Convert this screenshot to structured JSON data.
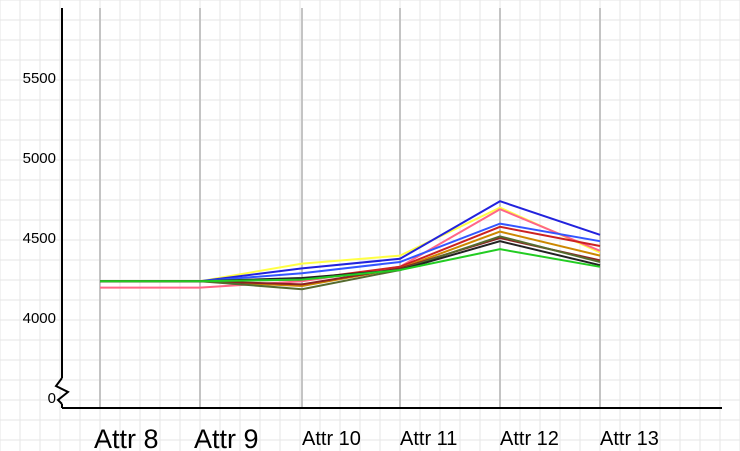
{
  "chart_data": {
    "type": "line",
    "title": "",
    "xlabel": "",
    "ylabel": "",
    "x_categories": [
      "Attr 8",
      "Attr 9",
      "Attr 10",
      "Attr 11",
      "Attr 12",
      "Attr 13"
    ],
    "y_tick_labels": [
      "0",
      "4000",
      "4500",
      "5000",
      "5500"
    ],
    "y_axis_break": true,
    "ylim": [
      3800,
      6000
    ],
    "grid": true,
    "legend": "none",
    "series": [
      {
        "color": "#ffff44",
        "values": [
          4230,
          4230,
          4340,
          4390,
          4690,
          4410
        ]
      },
      {
        "color": "#2222dd",
        "values": [
          4230,
          4230,
          4310,
          4370,
          4730,
          4520
        ]
      },
      {
        "color": "#ff6688",
        "values": [
          4190,
          4190,
          4230,
          4320,
          4680,
          4420
        ]
      },
      {
        "color": "#3355ff",
        "values": [
          4230,
          4230,
          4280,
          4350,
          4590,
          4480
        ]
      },
      {
        "color": "#cc2222",
        "values": [
          4230,
          4230,
          4240,
          4320,
          4570,
          4450
        ]
      },
      {
        "color": "#cc8800",
        "values": [
          4230,
          4230,
          4200,
          4310,
          4540,
          4390
        ]
      },
      {
        "color": "#8b2222",
        "values": [
          4230,
          4230,
          4210,
          4310,
          4500,
          4360
        ]
      },
      {
        "color": "#556b2f",
        "values": [
          4230,
          4230,
          4180,
          4300,
          4510,
          4350
        ]
      },
      {
        "color": "#222222",
        "values": [
          4230,
          4230,
          4250,
          4300,
          4480,
          4330
        ]
      },
      {
        "color": "#22cc22",
        "values": [
          4230,
          4230,
          4240,
          4300,
          4430,
          4320
        ]
      }
    ]
  }
}
